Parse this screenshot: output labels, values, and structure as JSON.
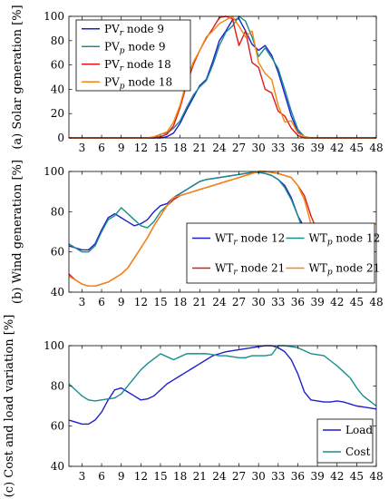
{
  "chart_data": [
    {
      "type": "line",
      "ylabel": "(a) Solar generation [%]",
      "xlim": [
        1,
        48
      ],
      "ylim": [
        0,
        100
      ],
      "xticks": [
        3,
        6,
        9,
        12,
        15,
        18,
        21,
        24,
        27,
        30,
        33,
        36,
        39,
        42,
        45,
        48
      ],
      "yticks": [
        0,
        20,
        40,
        60,
        80,
        100
      ],
      "legend": "top-left",
      "x": [
        1,
        2,
        3,
        4,
        5,
        6,
        7,
        8,
        9,
        10,
        11,
        12,
        13,
        14,
        15,
        16,
        17,
        18,
        19,
        20,
        21,
        22,
        23,
        24,
        25,
        26,
        27,
        28,
        29,
        30,
        31,
        32,
        33,
        34,
        35,
        36,
        37,
        38,
        39,
        40,
        41,
        42,
        43,
        44,
        45,
        46,
        47,
        48
      ],
      "series": [
        {
          "name": "PV",
          "sub": "r",
          "suffix": " node 9",
          "color": "#1f1fcc",
          "dashed": false,
          "values": [
            0,
            0,
            0,
            0,
            0,
            0,
            0,
            0,
            0,
            0,
            0,
            0,
            0,
            0,
            0,
            1,
            4,
            12,
            23,
            33,
            43,
            48,
            63,
            80,
            88,
            97,
            98,
            88,
            77,
            72,
            76,
            68,
            54,
            36,
            18,
            5,
            1,
            0,
            0,
            0,
            0,
            0,
            0,
            0,
            0,
            0,
            0,
            0
          ]
        },
        {
          "name": "PV",
          "sub": "p",
          "suffix": " node 9",
          "color": "#1a8c8c",
          "dashed": false,
          "values": [
            0,
            0,
            0,
            0,
            0,
            0,
            0,
            0,
            0,
            0,
            0,
            0,
            0,
            0,
            3,
            4,
            8,
            14,
            25,
            35,
            42,
            47,
            60,
            76,
            87,
            92,
            100,
            96,
            83,
            67,
            74,
            66,
            57,
            40,
            22,
            7,
            1,
            0,
            0,
            0,
            0,
            0,
            0,
            0,
            0,
            0,
            0,
            0
          ]
        },
        {
          "name": "PV",
          "sub": "r",
          "suffix": " node 18",
          "color": "#e01a1a",
          "dashed": false,
          "values": [
            0,
            0,
            0,
            0,
            0,
            0,
            0,
            0,
            0,
            0,
            0,
            0,
            0,
            0,
            1,
            3,
            10,
            25,
            44,
            60,
            72,
            82,
            90,
            99,
            100,
            98,
            76,
            88,
            62,
            58,
            40,
            37,
            22,
            18,
            8,
            2,
            0,
            0,
            0,
            0,
            0,
            0,
            0,
            0,
            0,
            0,
            0,
            0
          ]
        },
        {
          "name": "PV",
          "sub": "p",
          "suffix": " node 18",
          "color": "#f2870f",
          "dashed": false,
          "values": [
            0,
            0,
            0,
            0,
            0,
            0,
            0,
            0,
            0,
            0,
            0,
            0,
            0,
            1,
            3,
            5,
            13,
            27,
            47,
            62,
            72,
            83,
            88,
            94,
            97,
            100,
            92,
            83,
            88,
            62,
            53,
            48,
            27,
            13,
            14,
            4,
            1,
            0,
            0,
            0,
            0,
            0,
            0,
            0,
            0,
            0,
            0,
            0
          ]
        }
      ]
    },
    {
      "type": "line",
      "ylabel": "(b) Wind generation [%]",
      "xlim": [
        1,
        48
      ],
      "ylim": [
        40,
        100
      ],
      "xticks": [
        3,
        6,
        9,
        12,
        15,
        18,
        21,
        24,
        27,
        30,
        33,
        36,
        39,
        42,
        45,
        48
      ],
      "yticks": [
        40,
        60,
        80,
        100
      ],
      "legend": "bottom-right",
      "x": [
        1,
        2,
        3,
        4,
        5,
        6,
        7,
        8,
        9,
        10,
        11,
        12,
        13,
        14,
        15,
        16,
        17,
        18,
        19,
        20,
        21,
        22,
        23,
        24,
        25,
        26,
        27,
        28,
        29,
        30,
        31,
        32,
        33,
        34,
        35,
        36,
        37,
        38,
        39,
        40,
        41,
        42,
        43,
        44,
        45,
        46,
        47,
        48
      ],
      "series": [
        {
          "name": "WT",
          "sub": "r",
          "suffix": " node 12",
          "color": "#1f1fcc",
          "dashed": false,
          "values": [
            63,
            62,
            61,
            61,
            64,
            71,
            77,
            79,
            77,
            75,
            73,
            74,
            76,
            80,
            83,
            84,
            87,
            89,
            91,
            93,
            95,
            96,
            96.5,
            97,
            97.5,
            98,
            98.5,
            99,
            99.5,
            99.5,
            99,
            98,
            96,
            93,
            87,
            78,
            72,
            71,
            72,
            72,
            72,
            73,
            72,
            71,
            70,
            69,
            68.5,
            68
          ]
        },
        {
          "name": "WT",
          "sub": "p",
          "suffix": " node 12",
          "color": "#1a8c8c",
          "dashed": false,
          "values": [
            64,
            62,
            60,
            60,
            63,
            70,
            76,
            78,
            82,
            79,
            76,
            73,
            72,
            75,
            80,
            83,
            86,
            89,
            91,
            93,
            95,
            96,
            96.5,
            97,
            97.5,
            98,
            98.5,
            99,
            99.5,
            99.5,
            99,
            98,
            96,
            92,
            86,
            78,
            69,
            71,
            74,
            71,
            71,
            72,
            71,
            70,
            69,
            69,
            68.5,
            68
          ]
        },
        {
          "name": "WT",
          "sub": "r",
          "suffix": " node 21",
          "color": "#e01a1a",
          "dashed": false,
          "values": [
            49,
            46,
            44,
            43,
            43,
            44,
            45,
            47,
            49,
            52,
            57,
            62,
            67,
            73,
            78,
            83,
            86,
            88,
            89,
            90,
            91,
            92,
            93,
            94,
            95,
            96,
            97,
            98,
            99,
            100,
            100,
            99.5,
            99,
            98,
            97,
            93,
            88,
            78,
            70,
            68,
            68,
            69,
            71,
            72,
            73,
            73.5,
            74,
            74
          ]
        },
        {
          "name": "WT",
          "sub": "p",
          "suffix": " node 21",
          "color": "#f2870f",
          "dashed": false,
          "values": [
            48,
            46,
            44,
            43,
            43,
            44,
            45,
            47,
            49,
            52,
            57,
            62,
            67,
            73,
            78,
            83,
            87,
            88,
            89,
            90,
            91,
            92,
            93,
            94,
            95,
            96,
            97,
            98,
            99,
            100,
            100,
            99.5,
            99,
            98,
            97,
            93,
            86,
            74,
            66,
            68,
            69,
            70,
            71,
            72,
            73,
            73.5,
            74,
            74
          ]
        }
      ]
    },
    {
      "type": "line",
      "ylabel": "(c) Cost and load variation [%]",
      "xlim": [
        1,
        48
      ],
      "ylim": [
        40,
        100
      ],
      "xticks": [
        3,
        6,
        9,
        12,
        15,
        18,
        21,
        24,
        27,
        30,
        33,
        36,
        39,
        42,
        45,
        48
      ],
      "yticks": [
        40,
        60,
        80,
        100
      ],
      "legend": "bottom-right",
      "x": [
        1,
        2,
        3,
        4,
        5,
        6,
        7,
        8,
        9,
        10,
        11,
        12,
        13,
        14,
        15,
        16,
        17,
        18,
        19,
        20,
        21,
        22,
        23,
        24,
        25,
        26,
        27,
        28,
        29,
        30,
        31,
        32,
        33,
        34,
        35,
        36,
        37,
        38,
        39,
        40,
        41,
        42,
        43,
        44,
        45,
        46,
        47,
        48
      ],
      "series": [
        {
          "name": "Load",
          "sub": "",
          "suffix": "",
          "color": "#1f1fcc",
          "dashed": false,
          "values": [
            63,
            62,
            61,
            61,
            63,
            67,
            73,
            78,
            79,
            77,
            75,
            73,
            73.5,
            75,
            78,
            81,
            83,
            85,
            87,
            89,
            91,
            93,
            95,
            96,
            97,
            97.5,
            98,
            98.5,
            99,
            99.5,
            100,
            100,
            99,
            97,
            93,
            86,
            77,
            73,
            72.5,
            72,
            72,
            72.5,
            72,
            71,
            70,
            69.5,
            69,
            68.5
          ]
        },
        {
          "name": "Cost",
          "sub": "",
          "suffix": "",
          "color": "#1a8c8c",
          "dashed": false,
          "values": [
            81,
            78,
            75,
            73,
            72.5,
            73,
            73.5,
            74,
            76,
            80,
            84,
            88,
            91,
            93.5,
            96,
            94.5,
            93,
            94.5,
            96,
            96,
            96,
            96,
            95.5,
            95,
            95,
            94.5,
            94,
            94,
            95,
            95,
            95,
            95.5,
            100,
            100,
            99.5,
            99,
            97.5,
            96,
            95.5,
            95,
            92.5,
            90,
            87,
            84,
            79,
            75,
            72.5,
            70
          ]
        }
      ]
    }
  ]
}
